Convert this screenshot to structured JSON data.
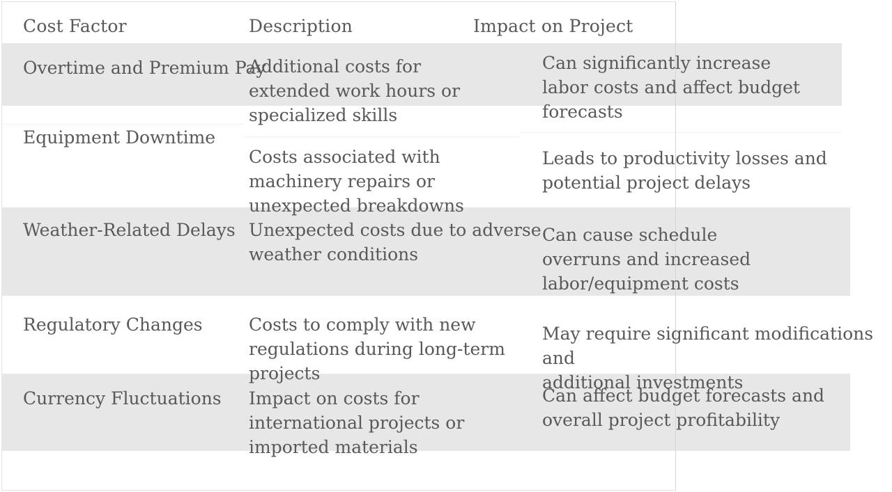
{
  "table": {
    "columns": [
      {
        "label": "Cost Factor"
      },
      {
        "label": "Description"
      },
      {
        "label": "Impact on Project"
      }
    ],
    "rows": [
      {
        "factor": "Overtime and Premium Pay",
        "description_lines": [
          "Additional costs for",
          "extended work hours or",
          "specialized skills"
        ],
        "impact_lines": [
          "Can significantly increase",
          "labor costs and affect budget",
          "forecasts"
        ]
      },
      {
        "factor": "Equipment Downtime",
        "description_lines": [
          "Costs associated with",
          "machinery repairs or",
          "unexpected breakdowns"
        ],
        "impact_lines": [
          "Leads to productivity losses and",
          "potential project delays"
        ]
      },
      {
        "factor": "Weather-Related Delays",
        "description_lines": [
          "Unexpected costs due to adverse",
          "weather conditions"
        ],
        "impact_lines": [
          "Can cause schedule",
          "overruns and increased",
          "labor/equipment costs"
        ]
      },
      {
        "factor": "Regulatory Changes",
        "description_lines": [
          "Costs to comply with new",
          "regulations during long-term",
          "projects"
        ],
        "impact_lines": [
          "May require significant modifications and",
          "additional investments"
        ]
      },
      {
        "factor": "Currency Fluctuations",
        "description_lines": [
          "Impact on costs for",
          "international projects or",
          "imported materials"
        ],
        "impact_lines": [
          "Can affect budget forecasts and",
          "overall project profitability"
        ]
      }
    ]
  },
  "colors": {
    "stripe": "#e7e7e7",
    "text": "#58595a",
    "page_border": "#e3e3e3"
  }
}
